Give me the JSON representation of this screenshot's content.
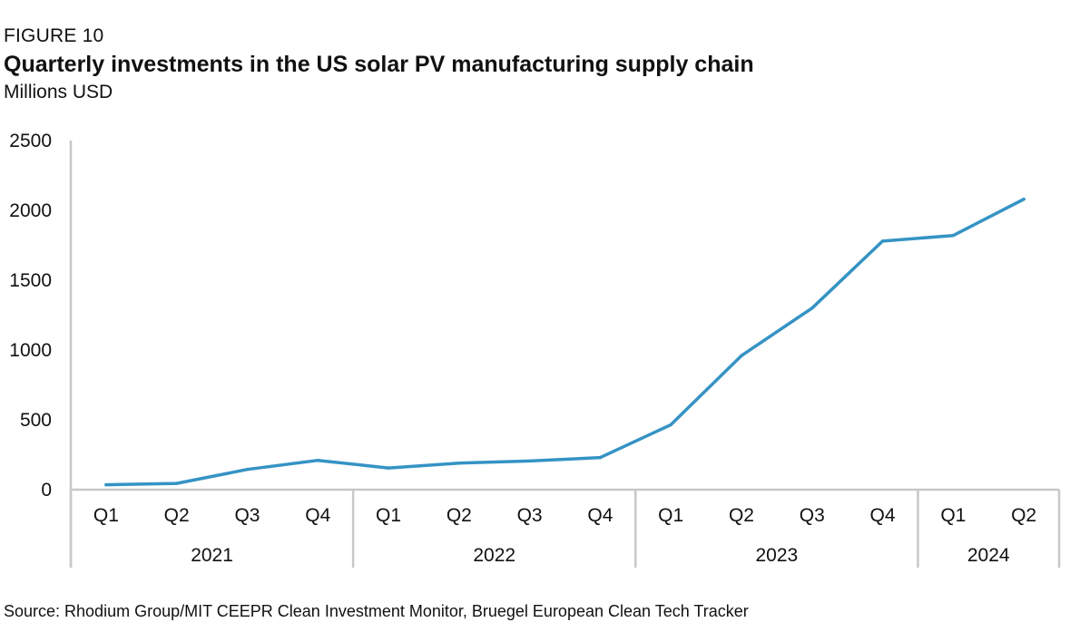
{
  "header": {
    "figure_label": "FIGURE 10",
    "title": "Quarterly investments in the US solar PV manufacturing supply chain",
    "subtitle": "Millions USD"
  },
  "footer": {
    "source": "Source: Rhodium Group/MIT CEEPR Clean Investment Monitor, Bruegel European Clean Tech Tracker"
  },
  "colors": {
    "line": "#3593c4",
    "axis": "#c8c8c8"
  },
  "chart_data": {
    "type": "line",
    "title": "Quarterly investments in the US solar PV manufacturing supply chain",
    "ylabel": "Millions USD",
    "xlabel": "",
    "ylim": [
      0,
      2500
    ],
    "yticks": [
      0,
      500,
      1000,
      1500,
      2000,
      2500
    ],
    "grid": false,
    "legend": "none",
    "categories": [
      "Q1",
      "Q2",
      "Q3",
      "Q4",
      "Q1",
      "Q2",
      "Q3",
      "Q4",
      "Q1",
      "Q2",
      "Q3",
      "Q4",
      "Q1",
      "Q2"
    ],
    "year_groups": [
      {
        "label": "2021",
        "count": 4
      },
      {
        "label": "2022",
        "count": 4
      },
      {
        "label": "2023",
        "count": 4
      },
      {
        "label": "2024",
        "count": 2
      }
    ],
    "series": [
      {
        "values": [
          35,
          45,
          145,
          210,
          155,
          190,
          205,
          230,
          465,
          960,
          1300,
          1780,
          1820,
          2080
        ]
      }
    ]
  }
}
